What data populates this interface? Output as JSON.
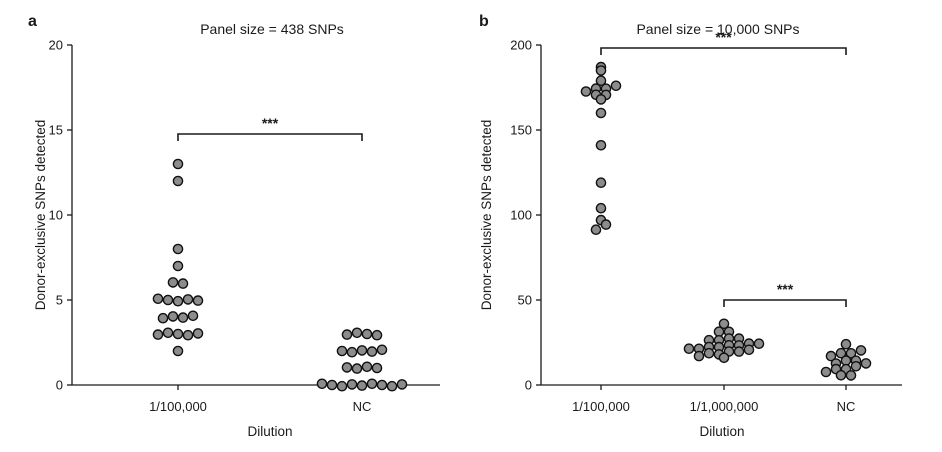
{
  "chart_data": [
    {
      "panel": "a",
      "type": "scatter",
      "subtype": "dot-plot",
      "title": "Panel size = 438 SNPs",
      "xlabel": "Dilution",
      "ylabel": "Donor-exclusive SNPs detected",
      "ylim": [
        0,
        20
      ],
      "yticks": [
        0,
        5,
        10,
        15,
        20
      ],
      "categories": [
        "1/100,000",
        "NC"
      ],
      "groups": [
        {
          "category": "1/100,000",
          "values": [
            2,
            3,
            3,
            3,
            3,
            3,
            4,
            4,
            4,
            4,
            5,
            5,
            5,
            5,
            5,
            6,
            6,
            7,
            8,
            12,
            13
          ]
        },
        {
          "category": "NC",
          "values": [
            0,
            0,
            0,
            0,
            0,
            0,
            0,
            0,
            0,
            1,
            1,
            1,
            1,
            2,
            2,
            2,
            2,
            2,
            3,
            3,
            3,
            3
          ]
        }
      ],
      "comparisons": [
        {
          "from": "1/100,000",
          "to": "NC",
          "y": 14.8,
          "label": "***"
        }
      ]
    },
    {
      "panel": "b",
      "type": "scatter",
      "subtype": "dot-plot",
      "title": "Panel size = 10,000 SNPs",
      "xlabel": "Dilution",
      "ylabel": "Donor-exclusive SNPs detected",
      "ylim": [
        0,
        200
      ],
      "yticks": [
        0,
        50,
        100,
        150,
        200
      ],
      "categories": [
        "1/100,000",
        "1/1,000,000",
        "NC"
      ],
      "groups": [
        {
          "category": "1/100,000",
          "values": [
            91,
            94,
            97,
            104,
            119,
            141,
            160,
            168,
            170,
            171,
            173,
            174,
            175,
            176,
            179,
            185,
            187
          ]
        },
        {
          "category": "1/1,000,000",
          "values": [
            16,
            17,
            18,
            18,
            19,
            20,
            20,
            21,
            22,
            22,
            23,
            23,
            24,
            24,
            25,
            26,
            27,
            27,
            28,
            31,
            32,
            36
          ]
        },
        {
          "category": "NC",
          "values": [
            5,
            6,
            8,
            9,
            10,
            11,
            12,
            13,
            14,
            15,
            17,
            18,
            19,
            20,
            24
          ]
        }
      ],
      "comparisons": [
        {
          "from": "1/100,000",
          "to": "NC",
          "y": 198,
          "label": "***"
        },
        {
          "from": "1/1,000,000",
          "to": "NC",
          "y": 50,
          "label": "***"
        }
      ]
    }
  ]
}
